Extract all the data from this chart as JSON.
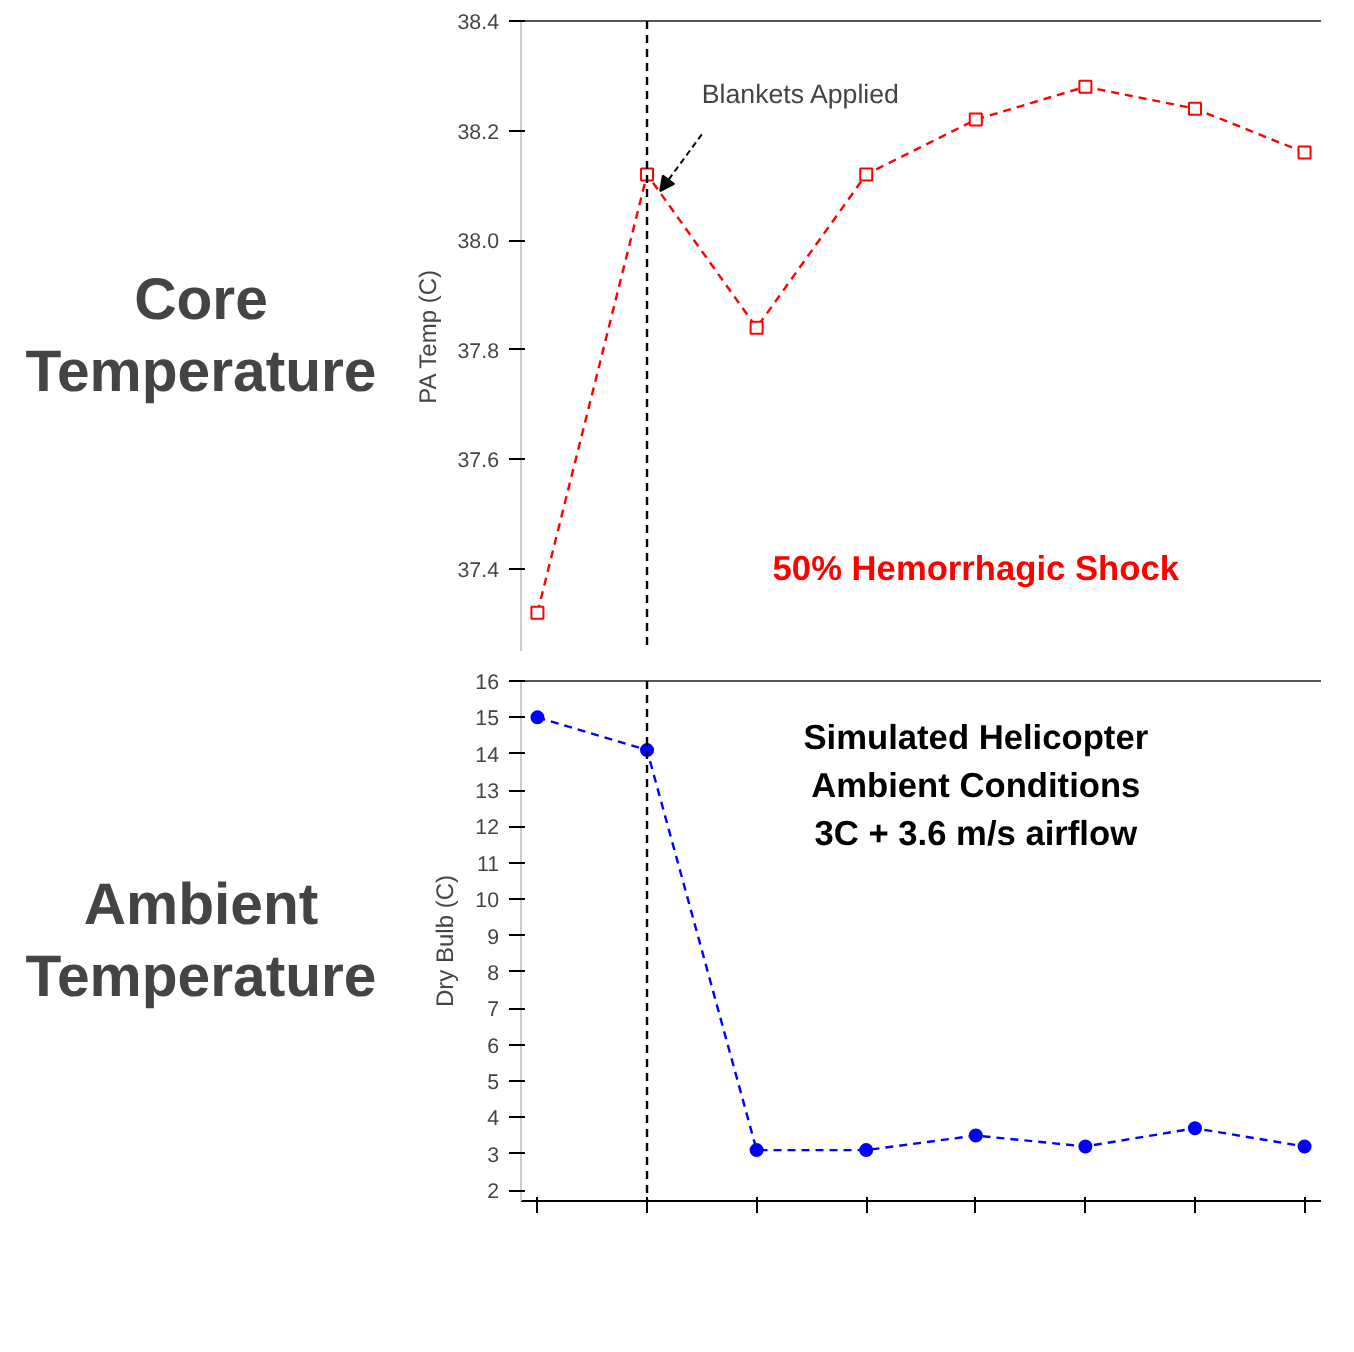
{
  "chart_data": [
    {
      "type": "line",
      "title": "Core Temperature",
      "ylabel": "PA Temp (C)",
      "categories": [
        null,
        null,
        null,
        null,
        null,
        null,
        null,
        null
      ],
      "series": [
        {
          "color": "#ff0000",
          "values": [
            37.32,
            38.12,
            37.84,
            38.12,
            38.22,
            38.28,
            38.24,
            38.16
          ],
          "marker": "square",
          "line_style": "dashed"
        }
      ],
      "ylim": [
        37.25,
        38.4
      ],
      "yticks": [
        37.4,
        37.6,
        37.8,
        {
          "value": 38.0,
          "label": "38.0"
        },
        38.2,
        38.4
      ],
      "grid": false,
      "tick_labels": "y",
      "annotations": [
        "Blankets Applied",
        "50% Hemorrhagic Shock"
      ]
    },
    {
      "type": "line",
      "title": "Ambient Temperature",
      "ylabel": "Dry Bulb (C)",
      "categories": [
        null,
        null,
        null,
        null,
        null,
        null,
        null,
        null
      ],
      "series": [
        {
          "color": "#0000ff",
          "values": [
            15.0,
            14.1,
            3.1,
            3.1,
            3.5,
            3.2,
            3.7,
            3.2
          ],
          "marker": "circle",
          "line_style": "dashed"
        }
      ],
      "ylim": [
        1.7,
        16
      ],
      "yticks": [
        2,
        3,
        4,
        5,
        6,
        7,
        8,
        9,
        10,
        11,
        12,
        13,
        14,
        15,
        16
      ],
      "grid": false,
      "annotations": [
        "Simulated Helicopter\nAmbient Conditions\n3C + 3.6 m/s airflow"
      ]
    }
  ]
}
